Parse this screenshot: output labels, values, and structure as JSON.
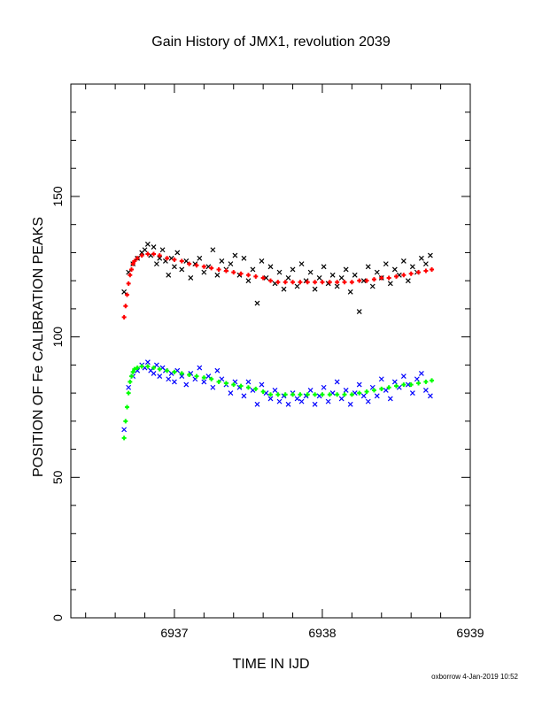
{
  "chart_data": {
    "type": "scatter",
    "title": "Gain History of JMX1, revolution 2039",
    "xlabel": "TIME IN IJD",
    "ylabel": "POSITION OF Fe CALIBRATION PEAKS",
    "xlim": [
      6936.3,
      6939.0
    ],
    "ylim": [
      0,
      190
    ],
    "x_ticks": [
      6937,
      6938,
      6939
    ],
    "y_ticks": [
      0,
      50,
      100,
      150
    ],
    "grid": false,
    "legend": "none",
    "footer": "oxborrow  4-Jan-2019 10:52",
    "series": [
      {
        "marker": "x",
        "color": "#000000",
        "x": [
          6936.66,
          6936.69,
          6936.72,
          6936.75,
          6936.78,
          6936.8,
          6936.82,
          6936.84,
          6936.86,
          6936.88,
          6936.9,
          6936.92,
          6936.94,
          6936.96,
          6936.98,
          6937.0,
          6937.02,
          6937.05,
          6937.08,
          6937.11,
          6937.14,
          6937.17,
          6937.2,
          6937.23,
          6937.26,
          6937.29,
          6937.32,
          6937.35,
          6937.38,
          6937.41,
          6937.44,
          6937.47,
          6937.5,
          6937.53,
          6937.56,
          6937.59,
          6937.62,
          6937.65,
          6937.68,
          6937.71,
          6937.74,
          6937.77,
          6937.8,
          6937.83,
          6937.86,
          6937.89,
          6937.92,
          6937.95,
          6937.98,
          6938.01,
          6938.04,
          6938.07,
          6938.1,
          6938.13,
          6938.16,
          6938.19,
          6938.22,
          6938.25,
          6938.28,
          6938.31,
          6938.34,
          6938.37,
          6938.4,
          6938.43,
          6938.46,
          6938.49,
          6938.52,
          6938.55,
          6938.58,
          6938.61,
          6938.64,
          6938.67,
          6938.7,
          6938.73
        ],
        "values": [
          116,
          123,
          126,
          128,
          130,
          131,
          133,
          129,
          132,
          126,
          128,
          131,
          127,
          122,
          128,
          125,
          130,
          124,
          127,
          121,
          126,
          128,
          123,
          125,
          131,
          122,
          127,
          124,
          126,
          129,
          122,
          128,
          120,
          124,
          112,
          127,
          121,
          125,
          119,
          123,
          117,
          121,
          124,
          118,
          126,
          120,
          123,
          117,
          121,
          125,
          119,
          122,
          118,
          121,
          124,
          116,
          122,
          109,
          120,
          125,
          118,
          123,
          121,
          126,
          119,
          124,
          122,
          127,
          120,
          125,
          123,
          128,
          126,
          129
        ]
      },
      {
        "marker": "+",
        "color": "#ff0000",
        "x": [
          6936.66,
          6936.67,
          6936.68,
          6936.69,
          6936.7,
          6936.71,
          6936.72,
          6936.73,
          6936.75,
          6936.78,
          6936.82,
          6936.86,
          6936.9,
          6936.95,
          6937.0,
          6937.05,
          6937.1,
          6937.15,
          6937.2,
          6937.25,
          6937.3,
          6937.35,
          6937.4,
          6937.45,
          6937.5,
          6937.55,
          6937.6,
          6937.65,
          6937.7,
          6937.75,
          6937.8,
          6937.85,
          6937.9,
          6937.95,
          6938.0,
          6938.05,
          6938.1,
          6938.15,
          6938.2,
          6938.25,
          6938.3,
          6938.35,
          6938.4,
          6938.45,
          6938.5,
          6938.55,
          6938.6,
          6938.65,
          6938.7,
          6938.74
        ],
        "values": [
          107,
          111,
          115,
          119,
          122,
          124,
          126,
          127,
          128,
          129,
          129.5,
          129.5,
          129,
          128,
          127.5,
          127,
          126,
          125.5,
          125,
          124.5,
          124,
          123.5,
          123,
          122.5,
          122,
          121.5,
          121,
          120,
          119.5,
          119.5,
          119.5,
          119.5,
          119.5,
          119.5,
          119.5,
          119.5,
          119.5,
          119.5,
          119.5,
          120,
          120,
          120.5,
          121,
          121,
          121.5,
          122,
          122.5,
          123,
          123.5,
          124
        ]
      },
      {
        "marker": "x",
        "color": "#0000ff",
        "x": [
          6936.66,
          6936.69,
          6936.72,
          6936.75,
          6936.78,
          6936.8,
          6936.82,
          6936.84,
          6936.86,
          6936.88,
          6936.9,
          6936.92,
          6936.94,
          6936.96,
          6936.98,
          6937.0,
          6937.02,
          6937.05,
          6937.08,
          6937.11,
          6937.14,
          6937.17,
          6937.2,
          6937.23,
          6937.26,
          6937.29,
          6937.32,
          6937.35,
          6937.38,
          6937.41,
          6937.44,
          6937.47,
          6937.5,
          6937.53,
          6937.56,
          6937.59,
          6937.62,
          6937.65,
          6937.68,
          6937.71,
          6937.74,
          6937.77,
          6937.8,
          6937.83,
          6937.86,
          6937.89,
          6937.92,
          6937.95,
          6937.98,
          6938.01,
          6938.04,
          6938.07,
          6938.1,
          6938.13,
          6938.16,
          6938.19,
          6938.22,
          6938.25,
          6938.28,
          6938.31,
          6938.34,
          6938.37,
          6938.4,
          6938.43,
          6938.46,
          6938.49,
          6938.52,
          6938.55,
          6938.58,
          6938.61,
          6938.64,
          6938.67,
          6938.7,
          6938.73
        ],
        "values": [
          67,
          82,
          86,
          88,
          90,
          89,
          91,
          88,
          87,
          90,
          86,
          89,
          88,
          85,
          87,
          84,
          88,
          86,
          83,
          87,
          85,
          89,
          84,
          86,
          82,
          88,
          85,
          83,
          80,
          84,
          82,
          79,
          84,
          81,
          76,
          83,
          80,
          78,
          81,
          77,
          79,
          76,
          80,
          78,
          77,
          79,
          81,
          76,
          79,
          82,
          77,
          80,
          84,
          78,
          81,
          76,
          80,
          83,
          79,
          77,
          82,
          79,
          85,
          81,
          78,
          84,
          82,
          86,
          83,
          80,
          85,
          87,
          81,
          79
        ]
      },
      {
        "marker": "+",
        "color": "#00ff00",
        "x": [
          6936.66,
          6936.67,
          6936.68,
          6936.69,
          6936.7,
          6936.71,
          6936.72,
          6936.73,
          6936.75,
          6936.78,
          6936.82,
          6936.86,
          6936.9,
          6936.95,
          6937.0,
          6937.05,
          6937.1,
          6937.15,
          6937.2,
          6937.25,
          6937.3,
          6937.35,
          6937.4,
          6937.45,
          6937.5,
          6937.55,
          6937.6,
          6937.65,
          6937.7,
          6937.75,
          6937.8,
          6937.85,
          6937.9,
          6937.95,
          6938.0,
          6938.05,
          6938.1,
          6938.15,
          6938.2,
          6938.25,
          6938.3,
          6938.35,
          6938.4,
          6938.45,
          6938.5,
          6938.55,
          6938.6,
          6938.65,
          6938.7,
          6938.74
        ],
        "values": [
          64,
          70,
          75,
          80,
          84,
          86,
          87.5,
          88.5,
          89,
          89.5,
          89.5,
          89,
          88.5,
          88,
          87.5,
          87,
          86.5,
          86,
          85.5,
          85,
          84,
          83.5,
          83,
          82.5,
          82,
          81.5,
          80.5,
          79.5,
          79.5,
          79.5,
          79.5,
          79.5,
          79.5,
          79.5,
          79.5,
          79.5,
          79.5,
          79.5,
          79.5,
          80,
          80.5,
          81,
          81.5,
          82,
          82.5,
          83,
          83,
          83.5,
          84,
          84.5
        ]
      }
    ]
  }
}
